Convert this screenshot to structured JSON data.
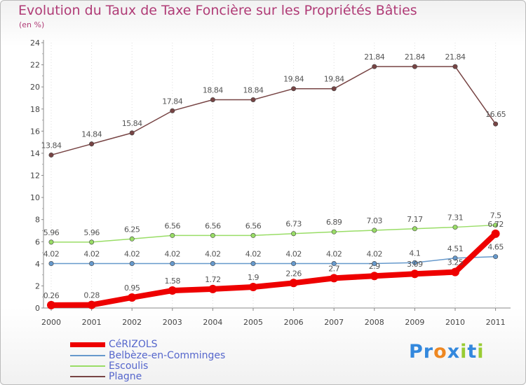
{
  "chart_data": {
    "type": "line",
    "title": "Evolution du Taux de Taxe Foncière sur les Propriétés Bâties",
    "unit_label": "(en %)",
    "x": [
      "2000",
      "2001",
      "2002",
      "2003",
      "2004",
      "2005",
      "2006",
      "2007",
      "2008",
      "2009",
      "2010",
      "2011"
    ],
    "ylim": [
      0,
      24
    ],
    "yticks": [
      0,
      2,
      4,
      6,
      8,
      10,
      12,
      14,
      16,
      18,
      20,
      22,
      24
    ],
    "grid": "dotted-vertical",
    "legend_position": "bottom-left",
    "series": [
      {
        "name": "CéRIZOLS",
        "color": "#ee0000",
        "width": 8,
        "values": [
          0.26,
          0.28,
          0.95,
          1.58,
          1.72,
          1.9,
          2.26,
          2.7,
          2.9,
          3.09,
          3.25,
          6.72
        ],
        "labels": [
          "0.26",
          "0.28",
          "0.95",
          "1.58",
          "1.72",
          "1.9",
          "2.26",
          "2.7",
          "2.9",
          "3.09",
          "3.25",
          "6.72"
        ]
      },
      {
        "name": "Belbèze-en-Comminges",
        "color": "#6699cc",
        "width": 1.5,
        "values": [
          4.02,
          4.02,
          4.02,
          4.02,
          4.02,
          4.02,
          4.02,
          4.02,
          4.02,
          4.1,
          4.51,
          4.65
        ],
        "labels": [
          "4.02",
          "4.02",
          "4.02",
          "4.02",
          "4.02",
          "4.02",
          "4.02",
          "4.02",
          "4.02",
          "4.1",
          "4.51",
          "4.65"
        ]
      },
      {
        "name": "Escoulis",
        "color": "#99dd66",
        "width": 1.5,
        "values": [
          5.96,
          5.96,
          6.25,
          6.56,
          6.56,
          6.56,
          6.73,
          6.89,
          7.03,
          7.17,
          7.31,
          7.5
        ],
        "labels": [
          "5.96",
          "5.96",
          "6.25",
          "6.56",
          "6.56",
          "6.56",
          "6.73",
          "6.89",
          "7.03",
          "7.17",
          "7.31",
          "7.5"
        ]
      },
      {
        "name": "Plagne",
        "color": "#774444",
        "width": 1.5,
        "values": [
          13.84,
          14.84,
          15.84,
          17.84,
          18.84,
          18.84,
          19.84,
          19.84,
          21.84,
          21.84,
          21.84,
          16.65
        ],
        "labels": [
          "13.84",
          "14.84",
          "15.84",
          "17.84",
          "18.84",
          "18.84",
          "19.84",
          "19.84",
          "21.84",
          "21.84",
          "21.84",
          "16.65"
        ]
      }
    ]
  },
  "logo": {
    "letters": [
      "P",
      "r",
      "o",
      "x",
      "i",
      "t",
      "i"
    ],
    "colors": [
      "#3388dd",
      "#3388dd",
      "#ee8822",
      "#3388dd",
      "#99cc33",
      "#3388dd",
      "#99cc33"
    ]
  }
}
